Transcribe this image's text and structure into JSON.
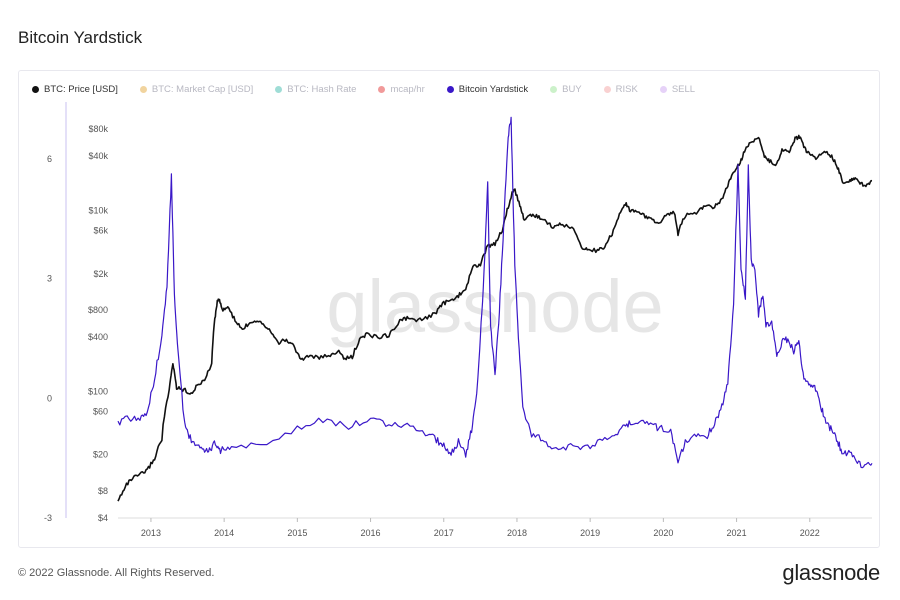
{
  "page": {
    "title": "Bitcoin Yardstick",
    "copyright": "© 2022 Glassnode. All Rights Reserved.",
    "brand": "glassnode",
    "watermark": "glassnode"
  },
  "legend": [
    {
      "label": "BTC: Price [USD]",
      "color": "#111111",
      "active": true
    },
    {
      "label": "BTC: Market Cap [USD]",
      "color": "#e0a02a",
      "active": false
    },
    {
      "label": "BTC: Hash Rate",
      "color": "#2bb3a3",
      "active": false
    },
    {
      "label": "mcap/hr",
      "color": "#e02020",
      "active": false
    },
    {
      "label": "Bitcoin Yardstick",
      "color": "#3a18c8",
      "active": true
    },
    {
      "label": "BUY",
      "color": "#8fe08a",
      "active": false
    },
    {
      "label": "RISK",
      "color": "#f29a9a",
      "active": false
    },
    {
      "label": "SELL",
      "color": "#c79cf0",
      "active": false
    }
  ],
  "chart_data": {
    "type": "line",
    "x_axis": {
      "labels": [
        "2013",
        "2014",
        "2015",
        "2016",
        "2017",
        "2018",
        "2019",
        "2020",
        "2021",
        "2022"
      ],
      "range": [
        2012.55,
        2022.85
      ]
    },
    "left_axis": {
      "ticks": [
        "6",
        "3",
        "0",
        "-3"
      ],
      "tick_values": [
        6,
        3,
        0,
        -3
      ],
      "range": [
        -3,
        6.98
      ]
    },
    "price_axis": {
      "ticks": [
        "$80k",
        "$40k",
        "$10k",
        "$6k",
        "$2k",
        "$800",
        "$400",
        "$100",
        "$60",
        "$20",
        "$8",
        "$4"
      ],
      "tick_values": [
        80000,
        40000,
        10000,
        6000,
        2000,
        800,
        400,
        100,
        60,
        20,
        8,
        4
      ],
      "scale": "log",
      "range": [
        4,
        100000
      ]
    },
    "series": [
      {
        "name": "BTC: Price [USD]",
        "color": "#111111",
        "axis": "price",
        "points": [
          [
            2012.55,
            6
          ],
          [
            2012.65,
            9
          ],
          [
            2012.75,
            11
          ],
          [
            2012.85,
            12
          ],
          [
            2012.95,
            13.5
          ],
          [
            2013.05,
            18
          ],
          [
            2013.15,
            30
          ],
          [
            2013.25,
            100
          ],
          [
            2013.3,
            200
          ],
          [
            2013.35,
            110
          ],
          [
            2013.45,
            105
          ],
          [
            2013.55,
            95
          ],
          [
            2013.65,
            120
          ],
          [
            2013.75,
            140
          ],
          [
            2013.83,
            200
          ],
          [
            2013.88,
            700
          ],
          [
            2013.92,
            1100
          ],
          [
            2013.97,
            800
          ],
          [
            2014.05,
            850
          ],
          [
            2014.15,
            600
          ],
          [
            2014.25,
            480
          ],
          [
            2014.35,
            580
          ],
          [
            2014.45,
            620
          ],
          [
            2014.55,
            550
          ],
          [
            2014.65,
            450
          ],
          [
            2014.75,
            350
          ],
          [
            2014.85,
            370
          ],
          [
            2014.95,
            320
          ],
          [
            2015.05,
            220
          ],
          [
            2015.15,
            250
          ],
          [
            2015.3,
            235
          ],
          [
            2015.45,
            250
          ],
          [
            2015.55,
            280
          ],
          [
            2015.65,
            230
          ],
          [
            2015.75,
            240
          ],
          [
            2015.85,
            370
          ],
          [
            2015.95,
            430
          ],
          [
            2016.1,
            400
          ],
          [
            2016.25,
            420
          ],
          [
            2016.4,
            600
          ],
          [
            2016.5,
            650
          ],
          [
            2016.6,
            600
          ],
          [
            2016.75,
            640
          ],
          [
            2016.9,
            750
          ],
          [
            2017.0,
            950
          ],
          [
            2017.1,
            1000
          ],
          [
            2017.2,
            1150
          ],
          [
            2017.3,
            1300
          ],
          [
            2017.4,
            2400
          ],
          [
            2017.5,
            2500
          ],
          [
            2017.6,
            4000
          ],
          [
            2017.7,
            4300
          ],
          [
            2017.8,
            6000
          ],
          [
            2017.88,
            11000
          ],
          [
            2017.96,
            17500
          ],
          [
            2018.04,
            11000
          ],
          [
            2018.1,
            8000
          ],
          [
            2018.2,
            9000
          ],
          [
            2018.3,
            8500
          ],
          [
            2018.4,
            7500
          ],
          [
            2018.5,
            6500
          ],
          [
            2018.6,
            7000
          ],
          [
            2018.75,
            6500
          ],
          [
            2018.88,
            4000
          ],
          [
            2018.96,
            3700
          ],
          [
            2019.1,
            3600
          ],
          [
            2019.2,
            4000
          ],
          [
            2019.3,
            5500
          ],
          [
            2019.4,
            9000
          ],
          [
            2019.48,
            12000
          ],
          [
            2019.55,
            10000
          ],
          [
            2019.65,
            10000
          ],
          [
            2019.75,
            8500
          ],
          [
            2019.85,
            8000
          ],
          [
            2019.95,
            7200
          ],
          [
            2020.05,
            9000
          ],
          [
            2020.15,
            9500
          ],
          [
            2020.2,
            5500
          ],
          [
            2020.3,
            8800
          ],
          [
            2020.45,
            9300
          ],
          [
            2020.55,
            11000
          ],
          [
            2020.7,
            11000
          ],
          [
            2020.8,
            13000
          ],
          [
            2020.88,
            18500
          ],
          [
            2020.96,
            27000
          ],
          [
            2021.05,
            33000
          ],
          [
            2021.12,
            48000
          ],
          [
            2021.2,
            57000
          ],
          [
            2021.3,
            63000
          ],
          [
            2021.38,
            40000
          ],
          [
            2021.45,
            35000
          ],
          [
            2021.55,
            32000
          ],
          [
            2021.62,
            47000
          ],
          [
            2021.72,
            43000
          ],
          [
            2021.8,
            62000
          ],
          [
            2021.86,
            66000
          ],
          [
            2021.93,
            48000
          ],
          [
            2022.0,
            42000
          ],
          [
            2022.1,
            38000
          ],
          [
            2022.2,
            45000
          ],
          [
            2022.3,
            39000
          ],
          [
            2022.38,
            30000
          ],
          [
            2022.45,
            20000
          ],
          [
            2022.55,
            21000
          ],
          [
            2022.62,
            23000
          ],
          [
            2022.7,
            19500
          ],
          [
            2022.78,
            19300
          ],
          [
            2022.85,
            20500
          ]
        ]
      },
      {
        "name": "Bitcoin Yardstick",
        "color": "#3a18c8",
        "axis": "left",
        "points": [
          [
            2012.55,
            -0.6
          ],
          [
            2012.7,
            -0.5
          ],
          [
            2012.85,
            -0.55
          ],
          [
            2012.95,
            -0.3
          ],
          [
            2013.05,
            0.5
          ],
          [
            2013.15,
            1.6
          ],
          [
            2013.22,
            2.8
          ],
          [
            2013.28,
            5.6
          ],
          [
            2013.32,
            2.6
          ],
          [
            2013.37,
            1.2
          ],
          [
            2013.45,
            -0.5
          ],
          [
            2013.52,
            -0.95
          ],
          [
            2013.62,
            -1.2
          ],
          [
            2013.72,
            -1.35
          ],
          [
            2013.8,
            -1.3
          ],
          [
            2013.88,
            -1.1
          ],
          [
            2013.95,
            -1.3
          ],
          [
            2014.1,
            -1.25
          ],
          [
            2014.5,
            -1.15
          ],
          [
            2015.0,
            -0.75
          ],
          [
            2015.35,
            -0.55
          ],
          [
            2015.7,
            -0.7
          ],
          [
            2016.0,
            -0.5
          ],
          [
            2016.25,
            -0.65
          ],
          [
            2016.5,
            -0.7
          ],
          [
            2016.75,
            -0.85
          ],
          [
            2016.9,
            -1.05
          ],
          [
            2017.0,
            -1.2
          ],
          [
            2017.1,
            -1.35
          ],
          [
            2017.2,
            -1.1
          ],
          [
            2017.3,
            -1.4
          ],
          [
            2017.38,
            -0.8
          ],
          [
            2017.45,
            0.1
          ],
          [
            2017.5,
            1.5
          ],
          [
            2017.56,
            3.5
          ],
          [
            2017.6,
            5.4
          ],
          [
            2017.64,
            1.8
          ],
          [
            2017.7,
            0.6
          ],
          [
            2017.76,
            2.2
          ],
          [
            2017.82,
            4.4
          ],
          [
            2017.88,
            6.6
          ],
          [
            2017.92,
            7.0
          ],
          [
            2017.97,
            3.4
          ],
          [
            2018.03,
            1.2
          ],
          [
            2018.08,
            -0.3
          ],
          [
            2018.2,
            -0.9
          ],
          [
            2018.35,
            -1.0
          ],
          [
            2018.5,
            -1.25
          ],
          [
            2018.7,
            -1.2
          ],
          [
            2018.9,
            -1.25
          ],
          [
            2019.1,
            -1.1
          ],
          [
            2019.3,
            -0.9
          ],
          [
            2019.45,
            -0.75
          ],
          [
            2019.55,
            -0.6
          ],
          [
            2019.7,
            -0.55
          ],
          [
            2019.85,
            -0.7
          ],
          [
            2019.95,
            -0.75
          ],
          [
            2020.1,
            -0.8
          ],
          [
            2020.2,
            -1.6
          ],
          [
            2020.3,
            -1.1
          ],
          [
            2020.45,
            -0.9
          ],
          [
            2020.6,
            -0.95
          ],
          [
            2020.7,
            -0.6
          ],
          [
            2020.8,
            -0.2
          ],
          [
            2020.88,
            0.4
          ],
          [
            2020.96,
            2.4
          ],
          [
            2021.02,
            5.9
          ],
          [
            2021.06,
            3.2
          ],
          [
            2021.12,
            2.5
          ],
          [
            2021.16,
            5.8
          ],
          [
            2021.2,
            3.5
          ],
          [
            2021.25,
            3.2
          ],
          [
            2021.3,
            2.1
          ],
          [
            2021.36,
            2.6
          ],
          [
            2021.4,
            1.8
          ],
          [
            2021.48,
            1.9
          ],
          [
            2021.55,
            1.1
          ],
          [
            2021.62,
            1.4
          ],
          [
            2021.7,
            1.5
          ],
          [
            2021.78,
            1.2
          ],
          [
            2021.85,
            1.4
          ],
          [
            2021.92,
            0.5
          ],
          [
            2022.0,
            0.3
          ],
          [
            2022.08,
            0.25
          ],
          [
            2022.15,
            -0.2
          ],
          [
            2022.22,
            -0.6
          ],
          [
            2022.3,
            -0.8
          ],
          [
            2022.38,
            -1.1
          ],
          [
            2022.45,
            -1.35
          ],
          [
            2022.55,
            -1.4
          ],
          [
            2022.65,
            -1.6
          ],
          [
            2022.75,
            -1.7
          ],
          [
            2022.85,
            -1.65
          ]
        ]
      }
    ],
    "grid": false,
    "legend_position": "top-left"
  }
}
